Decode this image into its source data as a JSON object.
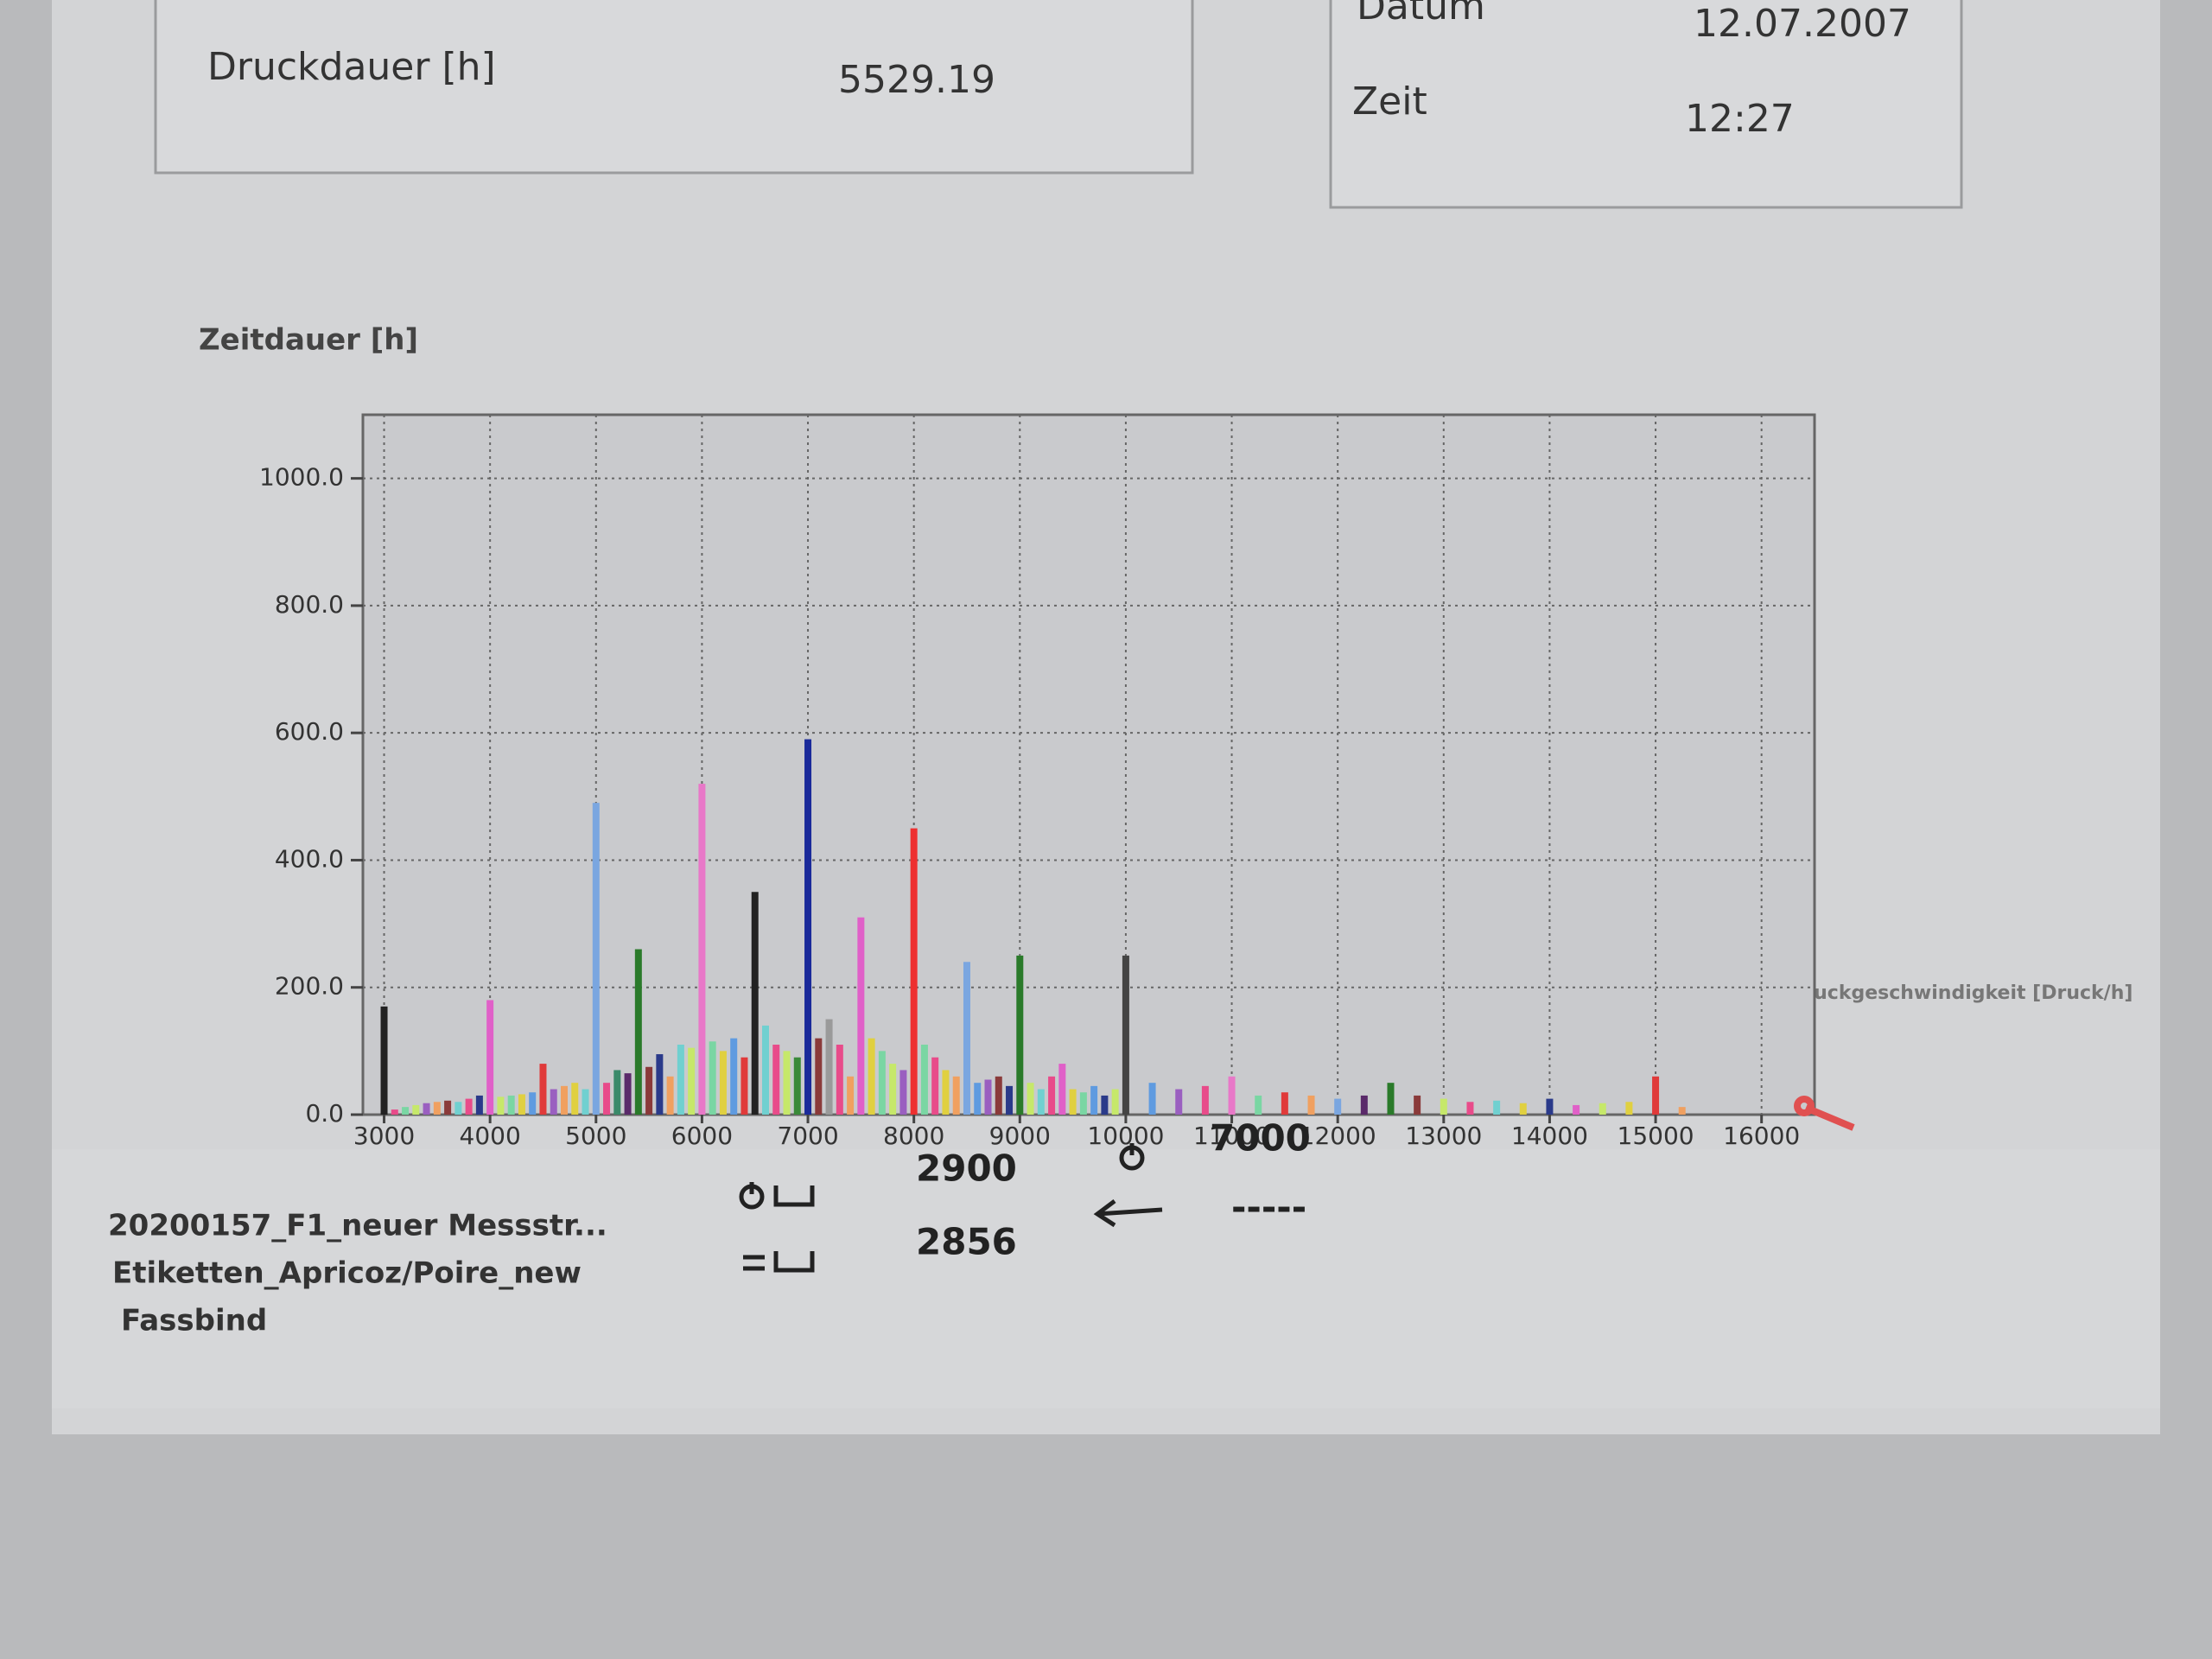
{
  "header": {
    "duration_label": "Druckdauer [h]",
    "duration_value": "5529.19",
    "date_label": "Datum",
    "date": "12.07.2007",
    "time_label": "Zeit",
    "time": "12:27"
  },
  "chart_data": {
    "type": "bar",
    "y_title": "Zeitdauer [h]",
    "x_title": "Druckgeschwindigkeit [Druck/h]",
    "x": [
      3000,
      3100,
      3200,
      3300,
      3400,
      3500,
      3600,
      3700,
      3800,
      3900,
      4000,
      4100,
      4200,
      4300,
      4400,
      4500,
      4600,
      4700,
      4800,
      4900,
      5000,
      5100,
      5200,
      5300,
      5400,
      5500,
      5600,
      5700,
      5800,
      5900,
      6000,
      6100,
      6200,
      6300,
      6400,
      6500,
      6600,
      6700,
      6800,
      6900,
      7000,
      7100,
      7200,
      7300,
      7400,
      7500,
      7600,
      7700,
      7800,
      7900,
      8000,
      8100,
      8200,
      8300,
      8400,
      8500,
      8600,
      8700,
      8800,
      8900,
      9000,
      9100,
      9200,
      9300,
      9400,
      9500,
      9600,
      9700,
      9800,
      9900,
      10000,
      10250,
      10500,
      10750,
      11000,
      11250,
      11500,
      11750,
      12000,
      12250,
      12500,
      12750,
      13000,
      13250,
      13500,
      13750,
      14000,
      14250,
      14500,
      14750,
      15000,
      15250
    ],
    "values": [
      170,
      8,
      12,
      15,
      18,
      20,
      22,
      20,
      25,
      30,
      180,
      28,
      30,
      32,
      35,
      80,
      40,
      45,
      50,
      40,
      490,
      50,
      70,
      65,
      260,
      75,
      95,
      60,
      110,
      105,
      520,
      115,
      100,
      120,
      90,
      350,
      140,
      110,
      100,
      90,
      590,
      120,
      150,
      110,
      60,
      310,
      120,
      100,
      80,
      70,
      450,
      110,
      90,
      70,
      60,
      240,
      50,
      55,
      60,
      45,
      250,
      50,
      40,
      60,
      80,
      40,
      35,
      45,
      30,
      40,
      250,
      50,
      40,
      45,
      60,
      30,
      35,
      30,
      25,
      30,
      50,
      30,
      25,
      20,
      22,
      18,
      25,
      15,
      18,
      20,
      60,
      12
    ],
    "colors": [
      "#222222",
      "#e84b8a",
      "#7ad6a3",
      "#c6e86a",
      "#9a5fc0",
      "#f0a060",
      "#8a3a3a",
      "#70d0d0",
      "#e84b8a",
      "#2a3a8a",
      "#e060c8",
      "#c6e86a",
      "#7ad6a3",
      "#e0d040",
      "#5f9be0",
      "#e03a3a",
      "#9a5fc0",
      "#f0a060",
      "#e0d040",
      "#70d0d0",
      "#7aa6e0",
      "#e84b8a",
      "#3a8a6a",
      "#5a2a6a",
      "#2a7a2a",
      "#8a3a3a",
      "#2a3a8a",
      "#f0a060",
      "#70d0d0",
      "#c6e86a",
      "#e878c8",
      "#7ad6a3",
      "#e0d040",
      "#5f9be0",
      "#e03a3a",
      "#222222",
      "#70d0d0",
      "#e84b8a",
      "#c6e86a",
      "#3a8a3a",
      "#1a2a9a",
      "#8a3a3a",
      "#9a9a9a",
      "#e84b8a",
      "#f0a060",
      "#e060c8",
      "#e0d040",
      "#7ad6a3",
      "#c6e86a",
      "#9a5fc0",
      "#ee3030",
      "#7ad6a3",
      "#e84b8a",
      "#e0d040",
      "#f0a060",
      "#7aa6e0",
      "#5f9be0",
      "#9a5fc0",
      "#8a3a3a",
      "#2a3a8a",
      "#2a7a2a",
      "#c6e86a",
      "#70d0d0",
      "#e84b8a",
      "#e060c8",
      "#e0d040",
      "#7ad6a3",
      "#5f9be0",
      "#2a3a8a",
      "#c6e86a",
      "#444444",
      "#5f9be0",
      "#9a5fc0",
      "#e84b8a",
      "#e878c8",
      "#7ad6a3",
      "#e03a3a",
      "#f0a060",
      "#7aa6e0",
      "#5a2a6a",
      "#2a7a2a",
      "#8a3a3a",
      "#c6e86a",
      "#e84b8a",
      "#70d0d0",
      "#e0d040",
      "#2a3a8a",
      "#e060c8",
      "#c6e86a",
      "#e0d040",
      "#e03a3a",
      "#f0a060"
    ],
    "xlim": [
      2800,
      16500
    ],
    "ylim": [
      0,
      1100
    ],
    "xticks": [
      3000,
      4000,
      5000,
      6000,
      7000,
      8000,
      9000,
      10000,
      11000,
      12000,
      13000,
      14000,
      15000,
      16000
    ],
    "yticks": [
      {
        "value": 0,
        "label": "0.0"
      },
      {
        "value": 200,
        "label": "200.0"
      },
      {
        "value": 400,
        "label": "400.0"
      },
      {
        "value": 600,
        "label": "600.0"
      },
      {
        "value": 800,
        "label": "800.0"
      },
      {
        "value": 1000,
        "label": "1000.0"
      }
    ],
    "grid": true
  },
  "footer": {
    "job": [
      "20200157_F1_neuer Messstr...",
      "Etiketten_Apricoz/Poire_new",
      "Fassbind"
    ],
    "counter_top": 2900,
    "counter_bottom": 2856,
    "speed": 7000,
    "rate": "-----"
  }
}
